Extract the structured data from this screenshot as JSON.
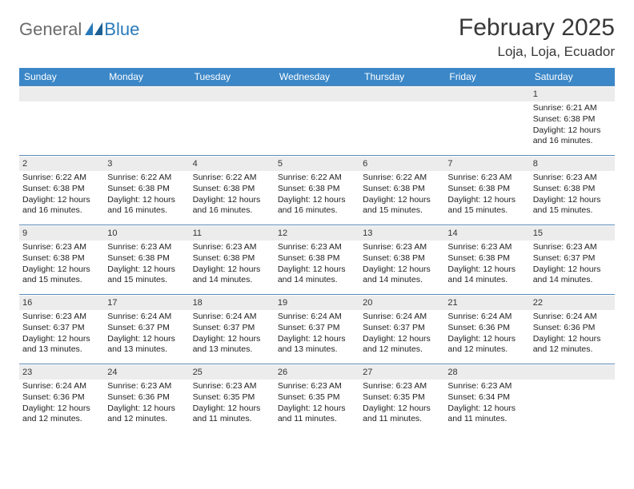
{
  "brand": {
    "word1": "General",
    "word2": "Blue"
  },
  "title": {
    "month_year": "February 2025",
    "location": "Loja, Loja, Ecuador"
  },
  "colors": {
    "header_bg": "#3b87c8",
    "header_text": "#ffffff",
    "daynum_bg": "#ececec",
    "week_divider": "#5a8bb8",
    "logo_gray": "#6b6b6b",
    "logo_blue": "#2a7ab9",
    "body_text": "#222222"
  },
  "typography": {
    "title_fontsize": 30,
    "location_fontsize": 17,
    "dow_fontsize": 12,
    "cell_fontsize": 10.5
  },
  "days_of_week": [
    "Sunday",
    "Monday",
    "Tuesday",
    "Wednesday",
    "Thursday",
    "Friday",
    "Saturday"
  ],
  "weeks": [
    [
      null,
      null,
      null,
      null,
      null,
      null,
      {
        "n": "1",
        "sunrise": "Sunrise: 6:21 AM",
        "sunset": "Sunset: 6:38 PM",
        "daylight": "Daylight: 12 hours and 16 minutes."
      }
    ],
    [
      {
        "n": "2",
        "sunrise": "Sunrise: 6:22 AM",
        "sunset": "Sunset: 6:38 PM",
        "daylight": "Daylight: 12 hours and 16 minutes."
      },
      {
        "n": "3",
        "sunrise": "Sunrise: 6:22 AM",
        "sunset": "Sunset: 6:38 PM",
        "daylight": "Daylight: 12 hours and 16 minutes."
      },
      {
        "n": "4",
        "sunrise": "Sunrise: 6:22 AM",
        "sunset": "Sunset: 6:38 PM",
        "daylight": "Daylight: 12 hours and 16 minutes."
      },
      {
        "n": "5",
        "sunrise": "Sunrise: 6:22 AM",
        "sunset": "Sunset: 6:38 PM",
        "daylight": "Daylight: 12 hours and 16 minutes."
      },
      {
        "n": "6",
        "sunrise": "Sunrise: 6:22 AM",
        "sunset": "Sunset: 6:38 PM",
        "daylight": "Daylight: 12 hours and 15 minutes."
      },
      {
        "n": "7",
        "sunrise": "Sunrise: 6:23 AM",
        "sunset": "Sunset: 6:38 PM",
        "daylight": "Daylight: 12 hours and 15 minutes."
      },
      {
        "n": "8",
        "sunrise": "Sunrise: 6:23 AM",
        "sunset": "Sunset: 6:38 PM",
        "daylight": "Daylight: 12 hours and 15 minutes."
      }
    ],
    [
      {
        "n": "9",
        "sunrise": "Sunrise: 6:23 AM",
        "sunset": "Sunset: 6:38 PM",
        "daylight": "Daylight: 12 hours and 15 minutes."
      },
      {
        "n": "10",
        "sunrise": "Sunrise: 6:23 AM",
        "sunset": "Sunset: 6:38 PM",
        "daylight": "Daylight: 12 hours and 15 minutes."
      },
      {
        "n": "11",
        "sunrise": "Sunrise: 6:23 AM",
        "sunset": "Sunset: 6:38 PM",
        "daylight": "Daylight: 12 hours and 14 minutes."
      },
      {
        "n": "12",
        "sunrise": "Sunrise: 6:23 AM",
        "sunset": "Sunset: 6:38 PM",
        "daylight": "Daylight: 12 hours and 14 minutes."
      },
      {
        "n": "13",
        "sunrise": "Sunrise: 6:23 AM",
        "sunset": "Sunset: 6:38 PM",
        "daylight": "Daylight: 12 hours and 14 minutes."
      },
      {
        "n": "14",
        "sunrise": "Sunrise: 6:23 AM",
        "sunset": "Sunset: 6:38 PM",
        "daylight": "Daylight: 12 hours and 14 minutes."
      },
      {
        "n": "15",
        "sunrise": "Sunrise: 6:23 AM",
        "sunset": "Sunset: 6:37 PM",
        "daylight": "Daylight: 12 hours and 14 minutes."
      }
    ],
    [
      {
        "n": "16",
        "sunrise": "Sunrise: 6:23 AM",
        "sunset": "Sunset: 6:37 PM",
        "daylight": "Daylight: 12 hours and 13 minutes."
      },
      {
        "n": "17",
        "sunrise": "Sunrise: 6:24 AM",
        "sunset": "Sunset: 6:37 PM",
        "daylight": "Daylight: 12 hours and 13 minutes."
      },
      {
        "n": "18",
        "sunrise": "Sunrise: 6:24 AM",
        "sunset": "Sunset: 6:37 PM",
        "daylight": "Daylight: 12 hours and 13 minutes."
      },
      {
        "n": "19",
        "sunrise": "Sunrise: 6:24 AM",
        "sunset": "Sunset: 6:37 PM",
        "daylight": "Daylight: 12 hours and 13 minutes."
      },
      {
        "n": "20",
        "sunrise": "Sunrise: 6:24 AM",
        "sunset": "Sunset: 6:37 PM",
        "daylight": "Daylight: 12 hours and 12 minutes."
      },
      {
        "n": "21",
        "sunrise": "Sunrise: 6:24 AM",
        "sunset": "Sunset: 6:36 PM",
        "daylight": "Daylight: 12 hours and 12 minutes."
      },
      {
        "n": "22",
        "sunrise": "Sunrise: 6:24 AM",
        "sunset": "Sunset: 6:36 PM",
        "daylight": "Daylight: 12 hours and 12 minutes."
      }
    ],
    [
      {
        "n": "23",
        "sunrise": "Sunrise: 6:24 AM",
        "sunset": "Sunset: 6:36 PM",
        "daylight": "Daylight: 12 hours and 12 minutes."
      },
      {
        "n": "24",
        "sunrise": "Sunrise: 6:23 AM",
        "sunset": "Sunset: 6:36 PM",
        "daylight": "Daylight: 12 hours and 12 minutes."
      },
      {
        "n": "25",
        "sunrise": "Sunrise: 6:23 AM",
        "sunset": "Sunset: 6:35 PM",
        "daylight": "Daylight: 12 hours and 11 minutes."
      },
      {
        "n": "26",
        "sunrise": "Sunrise: 6:23 AM",
        "sunset": "Sunset: 6:35 PM",
        "daylight": "Daylight: 12 hours and 11 minutes."
      },
      {
        "n": "27",
        "sunrise": "Sunrise: 6:23 AM",
        "sunset": "Sunset: 6:35 PM",
        "daylight": "Daylight: 12 hours and 11 minutes."
      },
      {
        "n": "28",
        "sunrise": "Sunrise: 6:23 AM",
        "sunset": "Sunset: 6:34 PM",
        "daylight": "Daylight: 12 hours and 11 minutes."
      },
      null
    ]
  ]
}
